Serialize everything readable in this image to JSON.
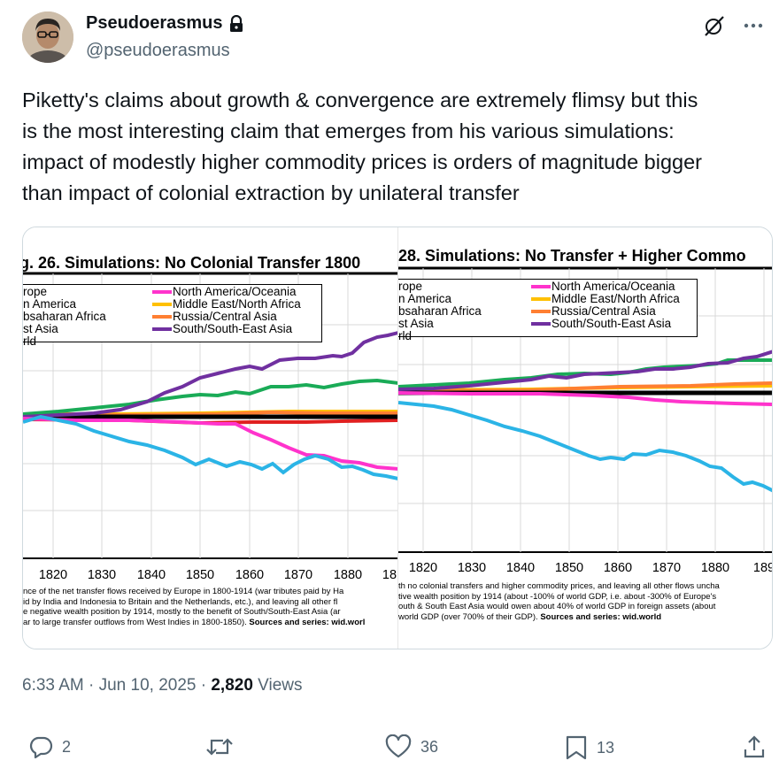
{
  "tweet": {
    "display_name": "Pseudoerasmus",
    "handle": "@pseudoerasmus",
    "text_lines": [
      "Piketty's claims about growth & convergence are extremely flimsy but this",
      "is the most interesting claim that emerges from his various simulations:",
      "impact of modestly higher commodity prices is orders of magnitude bigger",
      "than impact of colonial extraction by  unilateral transfer"
    ],
    "time": "6:33 AM · Jun 10, 2025 · ",
    "views_count": "2,820",
    "views_label": " Views"
  },
  "actions": {
    "replies": "2",
    "reposts": "",
    "likes": "36",
    "bookmarks": "13"
  },
  "icons": {
    "lock": "lock-icon",
    "grok": "grok-icon",
    "more": "more-icon",
    "reply": "reply-icon",
    "repost": "repost-icon",
    "like": "like-icon",
    "bookmark": "bookmark-icon",
    "share": "share-icon"
  },
  "colors": {
    "text": "#0f1419",
    "secondary": "#536471",
    "border": "#cfd9de",
    "series_north_america": "#ff33cc",
    "series_mena": "#ffc000",
    "series_russia": "#ff7f32",
    "series_south_asia": "#7030a0",
    "series_green": "#1aab57",
    "series_blue": "#2bb4e6",
    "series_red": "#e02020",
    "series_black": "#000000"
  },
  "media": {
    "panel1": {
      "title": "g. 26. Simulations: No Colonial Transfer 1800",
      "legend_left": [
        "rope",
        "n America",
        "bsaharan Africa",
        "st Asia",
        "rld"
      ],
      "legend_right": [
        "North America/Oceania",
        "Middle East/North Africa",
        "Russia/Central Asia",
        "South/South-East Asia"
      ],
      "xticks": [
        "1820",
        "1830",
        "1840",
        "1850",
        "1860",
        "1870",
        "1880",
        "18"
      ],
      "caption": [
        "nce of the net transfer flows received by Europe in 1800-1914 (war tributes paid by Ha",
        "id by India and Indonesia to Britain and the Netherlands, etc.),  and leaving all other fl",
        "e negative wealth position by 1914, mostly to the benefit of South/South-East  Asia (ar",
        "ar to large transfer outflows from West Indies in 1800-1850). "
      ],
      "caption_bold": "Sources and series: wid.worl"
    },
    "panel2": {
      "title": "28. Simulations: No Transfer + Higher Commo",
      "legend_left": [
        "rope",
        "n America",
        "bsaharan Africa",
        "st Asia",
        "rld"
      ],
      "legend_right": [
        "North America/Oceania",
        "Middle East/North Africa",
        "Russia/Central Asia",
        "South/South-East Asia"
      ],
      "xticks": [
        "1820",
        "1830",
        "1840",
        "1850",
        "1860",
        "1870",
        "1880",
        "189"
      ],
      "caption": [
        "th no colonial transfers and higher commodity prices, and leaving all other flows uncha",
        "tive wealth position by 1914 (about -100% of world GDP, i.e. about -300% of Europe's",
        "outh & South East Asia would owen about 40% of world GDP in foreign assets (about",
        "world GDP (over 700% of their GDP). "
      ],
      "caption_bold": "Sources and series: wid.world"
    }
  }
}
